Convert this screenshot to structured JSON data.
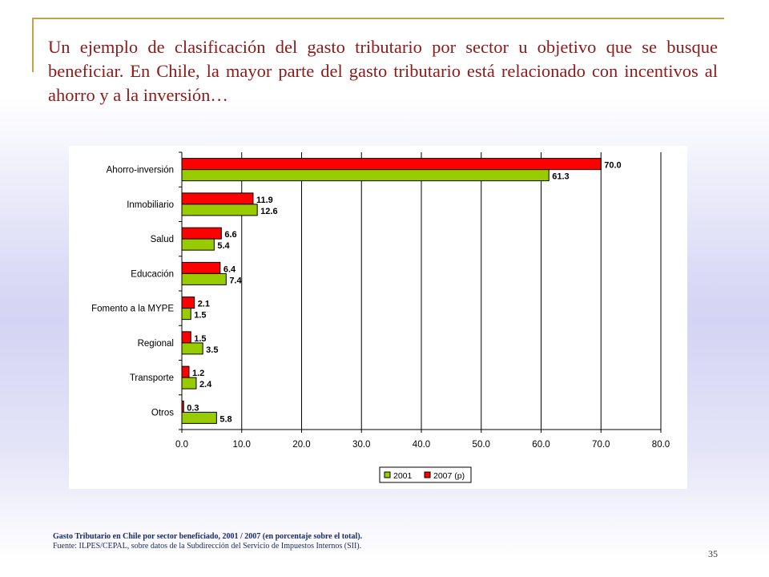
{
  "slide": {
    "title": "Un ejemplo de clasificación del gasto tributario por sector u objetivo que se busque beneficiar. En Chile, la mayor parte del gasto tributario está relacionado con incentivos al ahorro y a la inversión…",
    "caption_title": "Gasto Tributario en Chile por sector beneficiado, 2001 / 2007 (en porcentaje sobre el total).",
    "caption_source": "Fuente: ILPES/CEPAL, sobre datos de la Subdirección del Servicio de Impuestos Internos (SII).",
    "page_number": "35"
  },
  "chart_data": {
    "type": "bar",
    "orientation": "horizontal",
    "title": "",
    "xlabel": "",
    "ylabel": "",
    "categories": [
      "Ahorro-inversión",
      "Inmobiliario",
      "Salud",
      "Educación",
      "Fomento a la MYPE",
      "Regional",
      "Transporte",
      "Otros"
    ],
    "series": [
      {
        "name": "2007 (p)",
        "color": "#ff0000",
        "values": [
          70.0,
          11.9,
          6.6,
          6.4,
          2.1,
          1.5,
          1.2,
          0.3
        ]
      },
      {
        "name": "2001",
        "color": "#99cc00",
        "values": [
          61.3,
          12.6,
          5.4,
          7.4,
          1.5,
          3.5,
          2.4,
          5.8
        ]
      }
    ],
    "xlim": [
      0,
      80
    ],
    "xticks": [
      0,
      10,
      20,
      30,
      40,
      50,
      60,
      70,
      80
    ],
    "grid": "vertical",
    "legend": {
      "placement": "bottom",
      "order": [
        "2001",
        "2007 (p)"
      ]
    }
  }
}
